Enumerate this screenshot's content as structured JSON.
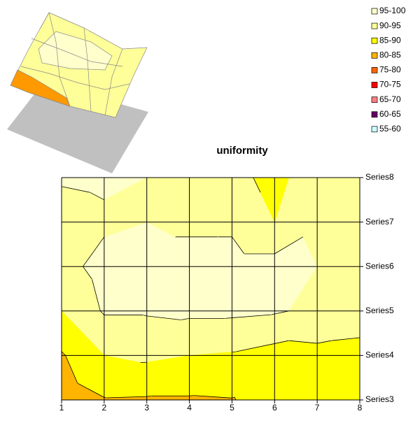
{
  "chart_data": {
    "type": "contour",
    "title": "uniformity",
    "x": [
      "1",
      "2",
      "3",
      "4",
      "5",
      "6",
      "7",
      "8"
    ],
    "series": [
      {
        "name": "Series3",
        "values": [
          82,
          84.7,
          84.5,
          84.5,
          84.8,
          87,
          87,
          87
        ]
      },
      {
        "name": "Series4",
        "values": [
          84.5,
          90,
          91,
          90,
          89.5,
          88,
          88.5,
          88
        ]
      },
      {
        "name": "Series5",
        "values": [
          90,
          95.5,
          95.5,
          96,
          96,
          95.5,
          94,
          93
        ]
      },
      {
        "name": "Series6",
        "values": [
          93,
          97,
          97,
          97,
          97,
          97,
          95,
          93
        ]
      },
      {
        "name": "Series7",
        "values": [
          93,
          94,
          95,
          94,
          94,
          90,
          94,
          93
        ]
      },
      {
        "name": "Series8",
        "values": [
          95.5,
          96,
          95,
          93,
          92,
          88,
          94,
          94
        ]
      }
    ],
    "bands": [
      {
        "label": "95-100",
        "min": 95,
        "max": 100,
        "color": "#ffffcc"
      },
      {
        "label": "90-95",
        "min": 90,
        "max": 95,
        "color": "#ffff99"
      },
      {
        "label": "85-90",
        "min": 85,
        "max": 90,
        "color": "#ffff00"
      },
      {
        "label": "80-85",
        "min": 80,
        "max": 85,
        "color": "#ffb400"
      },
      {
        "label": "75-80",
        "min": 75,
        "max": 80,
        "color": "#ff6600"
      },
      {
        "label": "70-75",
        "min": 70,
        "max": 75,
        "color": "#ff0000"
      },
      {
        "label": "65-70",
        "min": 65,
        "max": 70,
        "color": "#ff8080"
      },
      {
        "label": "60-65",
        "min": 60,
        "max": 65,
        "color": "#660066"
      },
      {
        "label": "55-60",
        "min": 55,
        "max": 60,
        "color": "#ccffff"
      }
    ]
  }
}
